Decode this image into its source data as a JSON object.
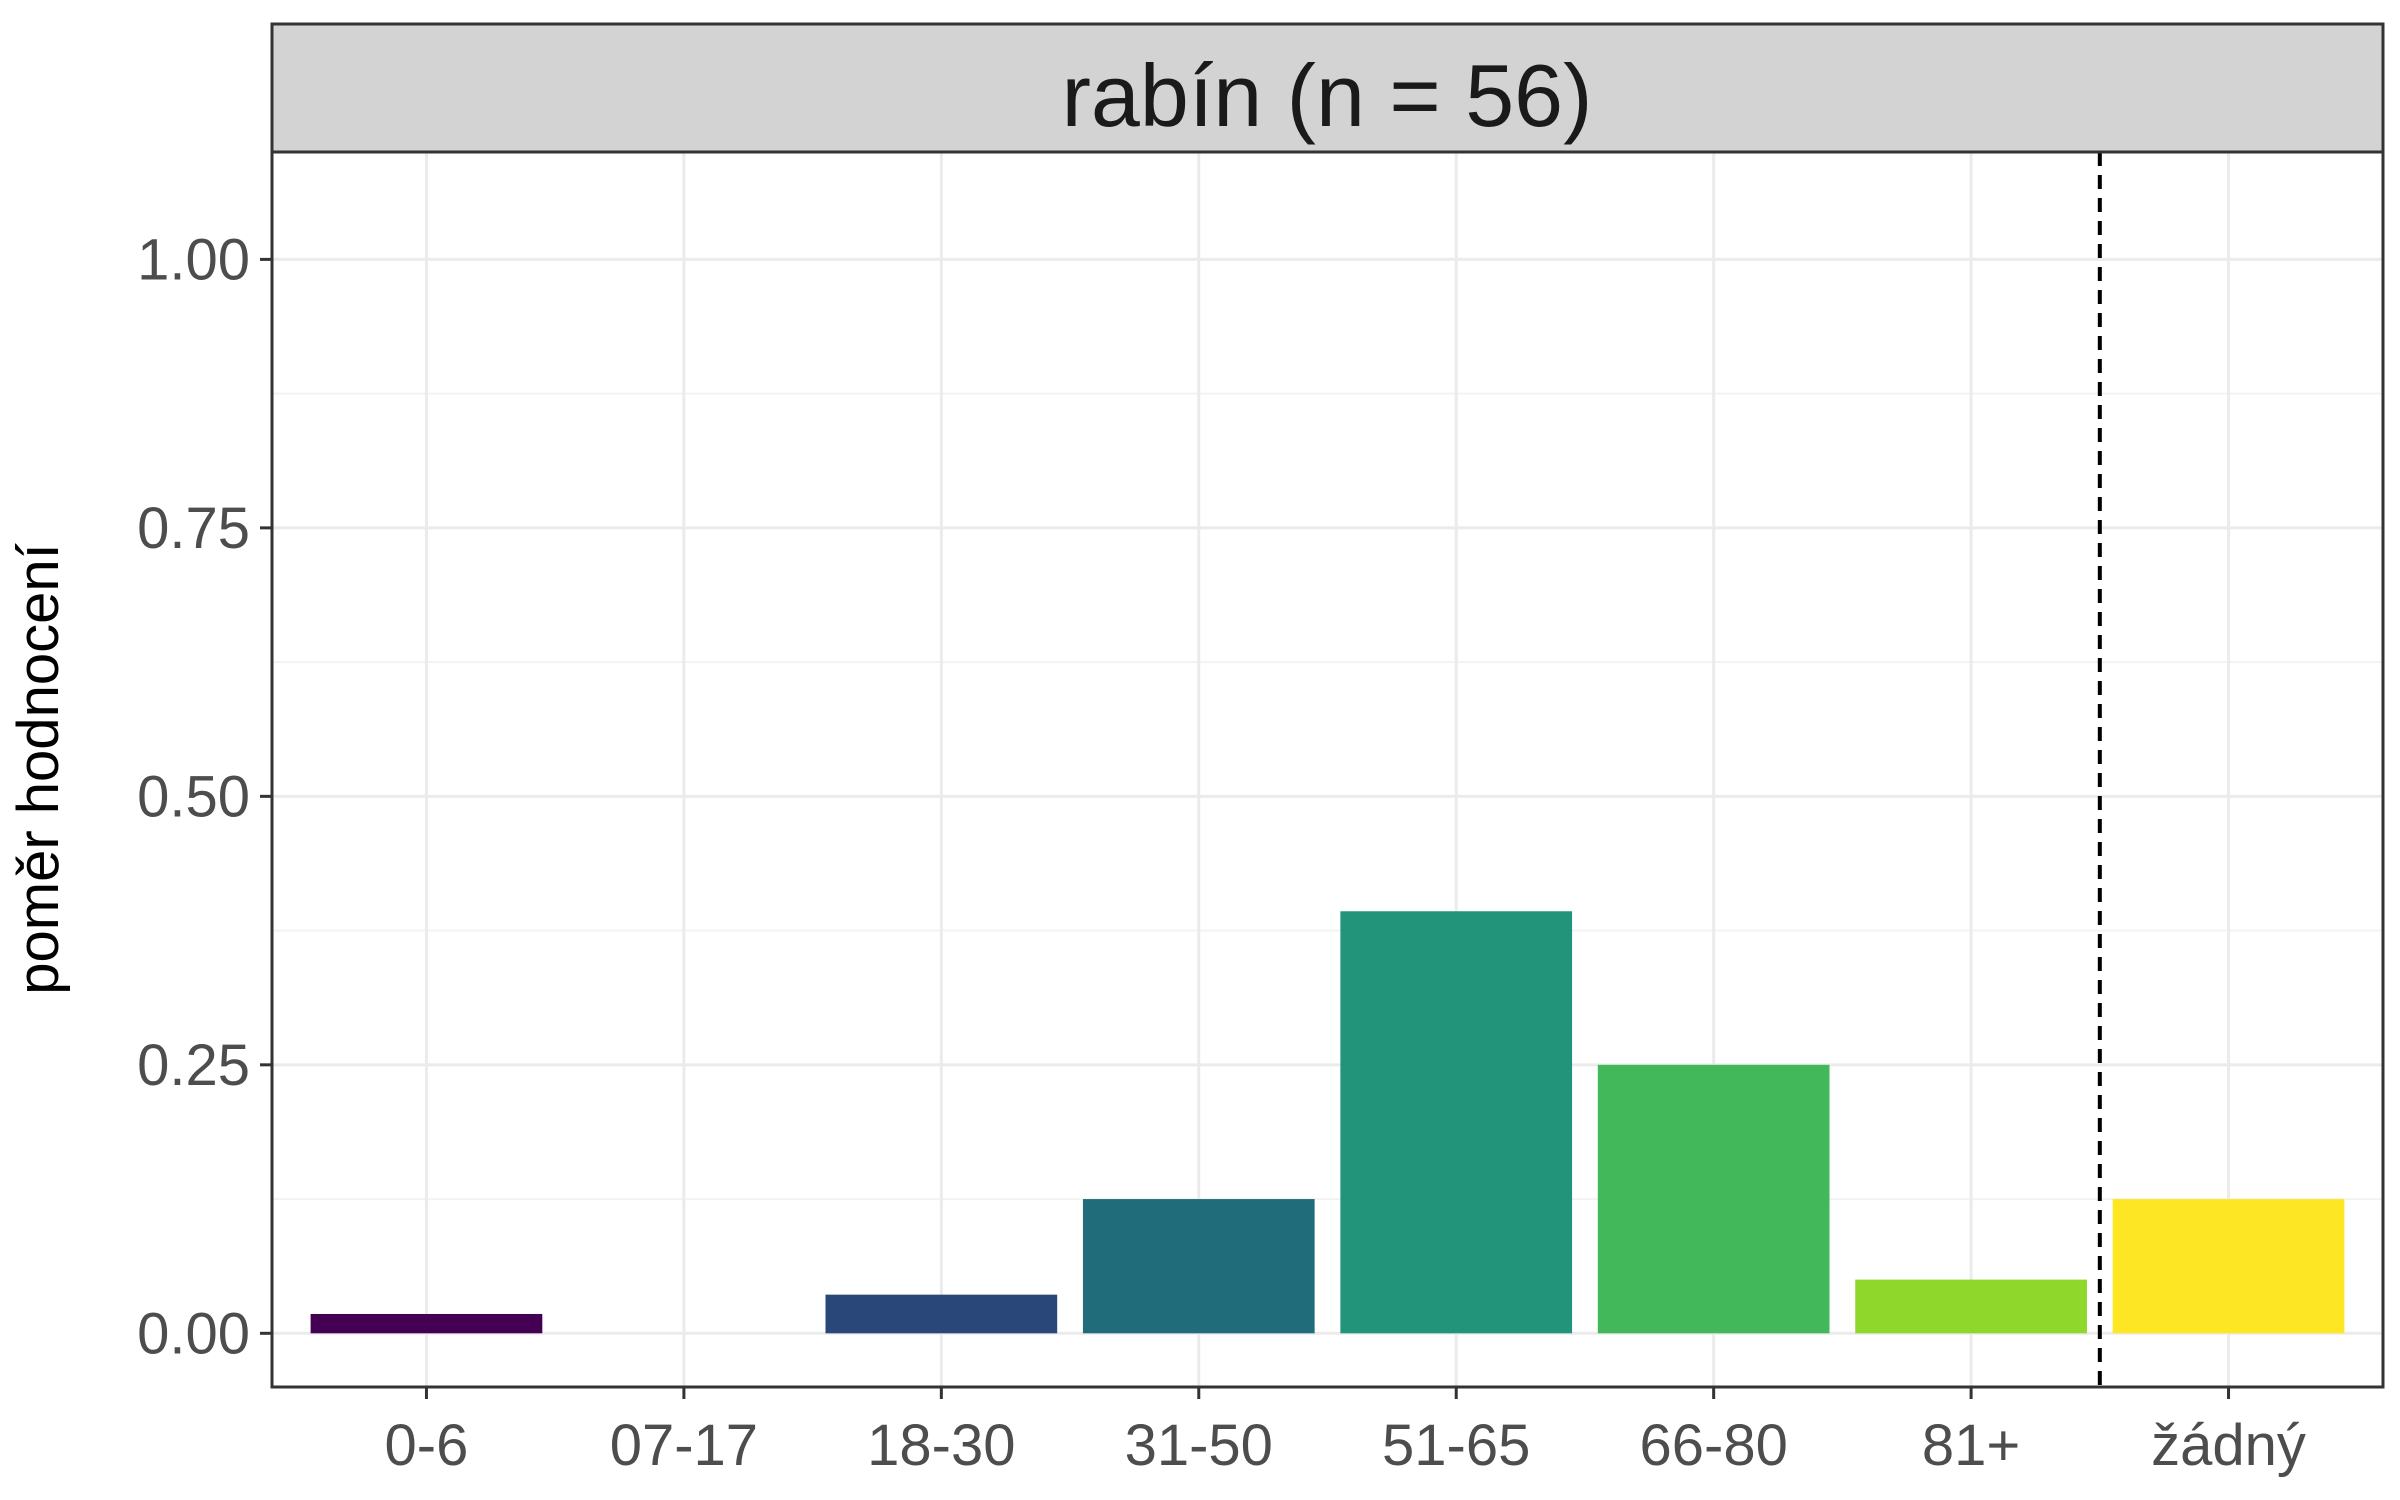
{
  "chart_data": {
    "type": "bar",
    "title": "rabín (n = 56)",
    "xlabel": "",
    "ylabel": "poměr hodnocení",
    "categories": [
      "0-6",
      "07-17",
      "18-30",
      "31-50",
      "51-65",
      "66-80",
      "81+",
      "žádný"
    ],
    "values": [
      0.018,
      0.0,
      0.036,
      0.125,
      0.393,
      0.25,
      0.05,
      0.125
    ],
    "colors": [
      "#440154",
      "#46327e",
      "#2a477a",
      "#216c7b",
      "#21947a",
      "#42b85a",
      "#8fd72a",
      "#fde724"
    ],
    "ylim": [
      -0.05,
      1.1
    ],
    "yticks": [
      0.0,
      0.25,
      0.5,
      0.75,
      1.0
    ],
    "ytick_labels": [
      "0.00",
      "0.25",
      "0.50",
      "0.75",
      "1.00"
    ],
    "grid": true,
    "legend": "none",
    "reference_line": {
      "between": [
        "81+",
        "žádný"
      ],
      "style": "dashed"
    }
  },
  "colors": {
    "strip_background": "#d3d3d3",
    "grid_major": "#ebebeb",
    "grid_minor": "#f3f3f3",
    "panel_border": "#333333"
  }
}
